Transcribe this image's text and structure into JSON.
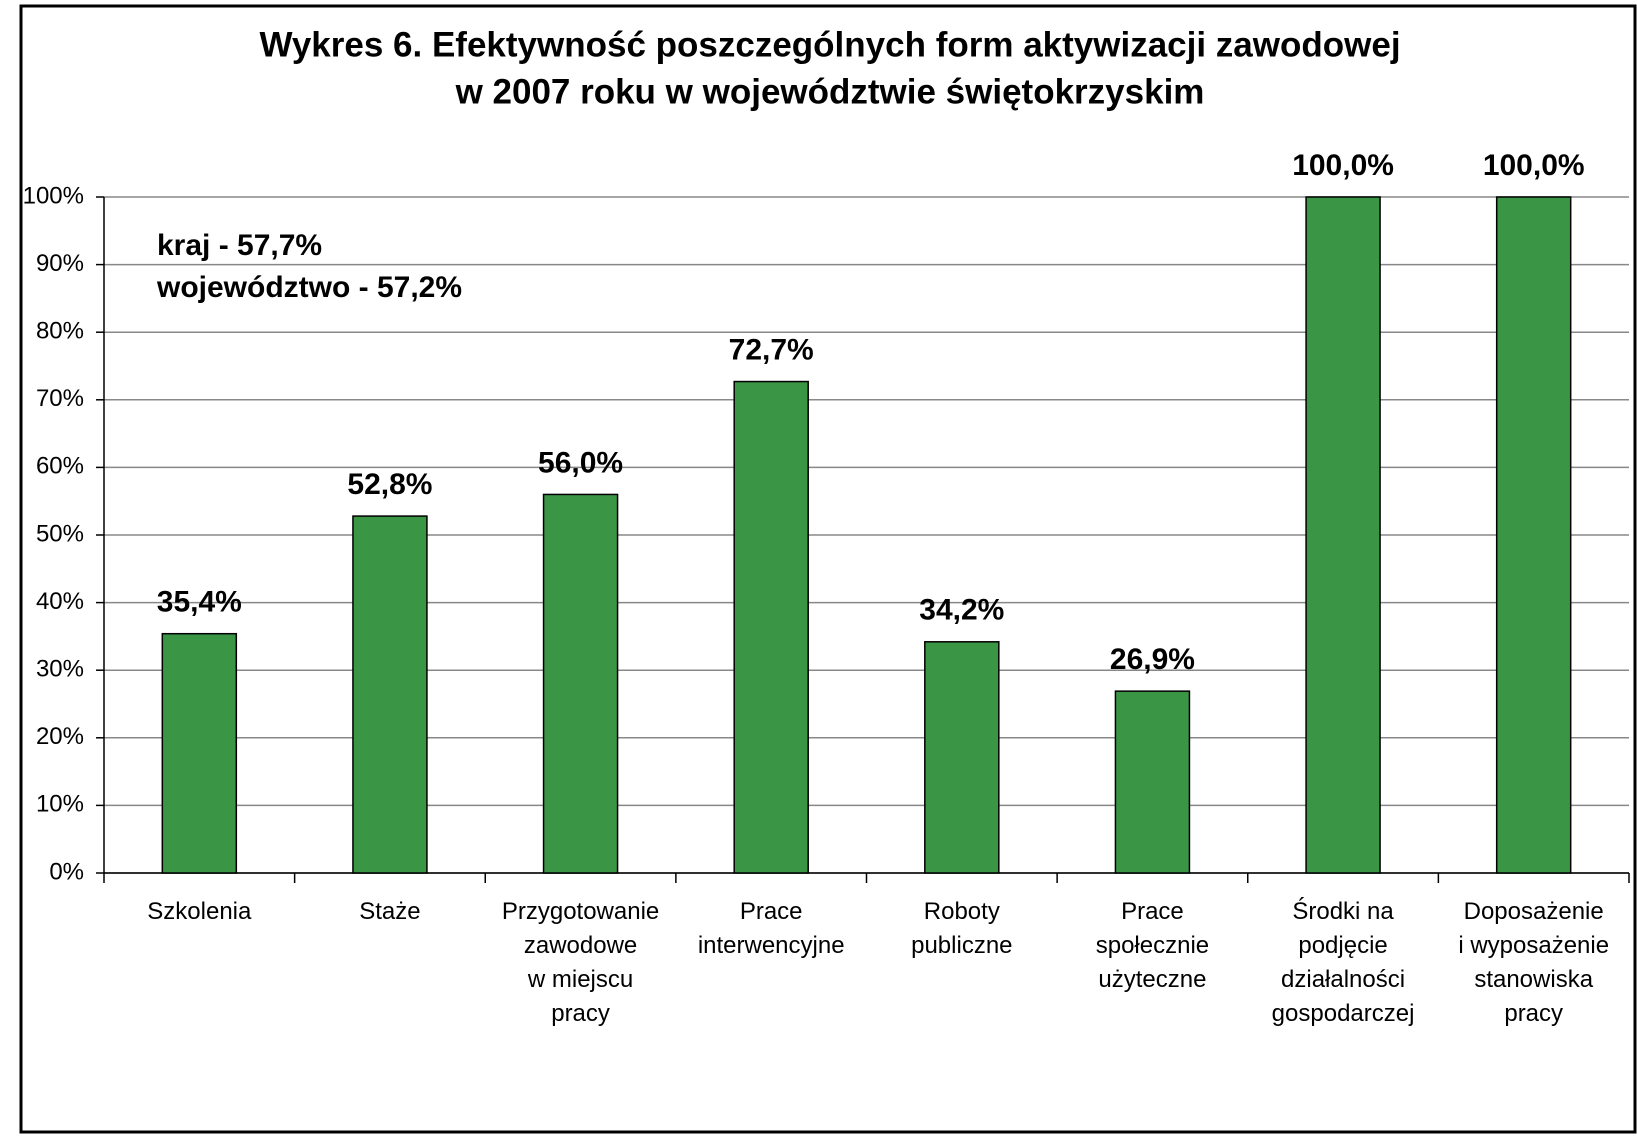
{
  "chart_data": {
    "type": "bar",
    "title": [
      "Wykres 6. Efektywność poszczególnych form aktywizacji zawodowej",
      "w 2007 roku w województwie świętokrzyskim"
    ],
    "annotations": [
      "kraj - 57,7%",
      "województwo - 57,2%"
    ],
    "categories": [
      "Szkolenia",
      "Staże",
      "Przygotowanie\nzawodowe\nw miejscu\npracy",
      "Prace\ninterwencyjne",
      "Roboty\npubliczne",
      "Prace\nspołecznie\nużyteczne",
      "Środki na\npodjęcie\ndziałalności\ngospodarczej",
      "Doposażenie\ni wyposażenie\nstanowiska\npracy"
    ],
    "values": [
      35.4,
      52.8,
      56.0,
      72.7,
      34.2,
      26.9,
      100.0,
      100.0
    ],
    "value_labels": [
      "35,4%",
      "52,8%",
      "56,0%",
      "72,7%",
      "34,2%",
      "26,9%",
      "100,0%",
      "100,0%"
    ],
    "color": "#3a9645",
    "ylim": [
      0,
      100
    ],
    "yticks": [
      {
        "value": 0,
        "label": "0%"
      },
      {
        "value": 10,
        "label": "10%"
      },
      {
        "value": 20,
        "label": "20%"
      },
      {
        "value": 30,
        "label": "30%"
      },
      {
        "value": 40,
        "label": "40%"
      },
      {
        "value": 50,
        "label": "50%"
      },
      {
        "value": 60,
        "label": "60%"
      },
      {
        "value": 70,
        "label": "70%"
      },
      {
        "value": 80,
        "label": "80%"
      },
      {
        "value": 90,
        "label": "90%"
      },
      {
        "value": 100,
        "label": "100%"
      }
    ],
    "grid": true
  }
}
